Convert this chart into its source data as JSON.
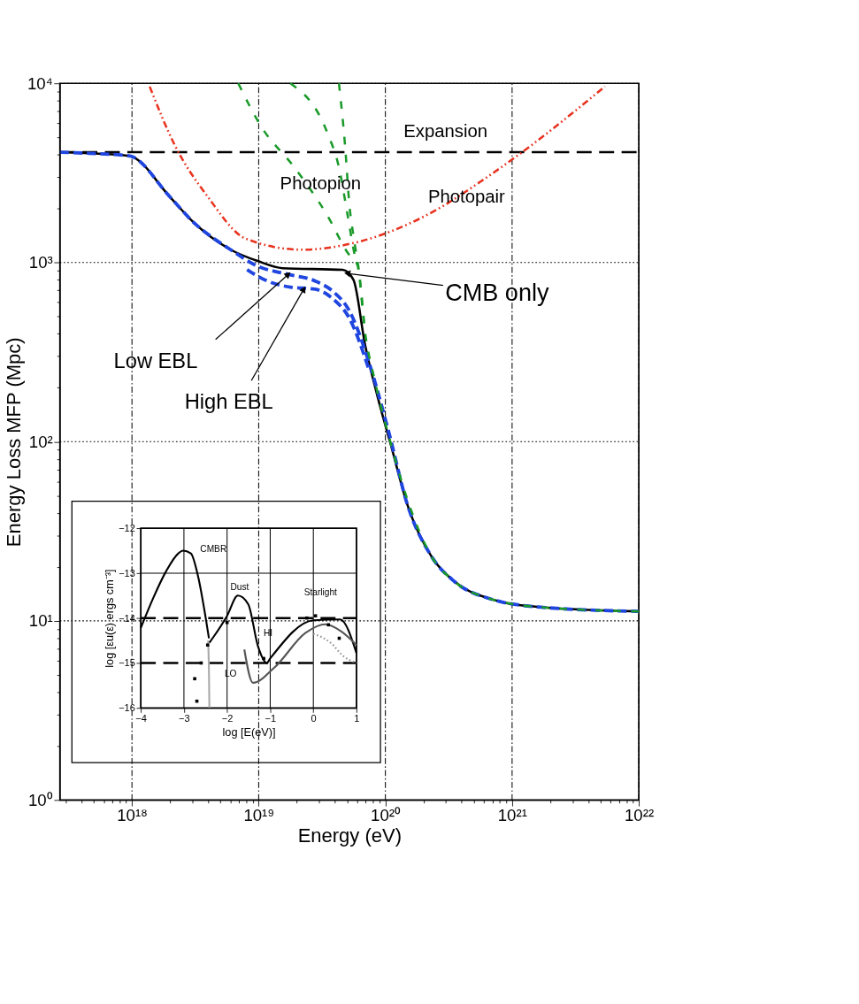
{
  "chart_data": [
    {
      "type": "line",
      "xlabel": "Energy (eV)",
      "ylabel": "Energy Loss MFP (Mpc)",
      "log": "xy",
      "xlim": [
        2.7e+17,
        1e+22
      ],
      "ylim": [
        1,
        10000
      ],
      "xticks": [
        {
          "value": 3e+17,
          "label": null
        },
        {
          "value": 4e+17,
          "label": null
        },
        {
          "value": 5e+17,
          "label": null
        },
        {
          "value": 6e+17,
          "label": null
        },
        {
          "value": 7e+17,
          "label": null
        },
        {
          "value": 8e+17,
          "label": null
        },
        {
          "value": 9e+17,
          "label": null
        },
        {
          "value": 1e+18,
          "label": "10¹⁸"
        },
        {
          "value": 2e+18,
          "label": null
        },
        {
          "value": 3e+18,
          "label": null
        },
        {
          "value": 4e+18,
          "label": null
        },
        {
          "value": 5e+18,
          "label": null
        },
        {
          "value": 6e+18,
          "label": null
        },
        {
          "value": 7e+18,
          "label": null
        },
        {
          "value": 8e+18,
          "label": null
        },
        {
          "value": 9e+18,
          "label": null
        },
        {
          "value": 1e+19,
          "label": "10¹⁹"
        },
        {
          "value": 2e+19,
          "label": null
        },
        {
          "value": 3e+19,
          "label": null
        },
        {
          "value": 4e+19,
          "label": null
        },
        {
          "value": 5e+19,
          "label": null
        },
        {
          "value": 6e+19,
          "label": null
        },
        {
          "value": 7e+19,
          "label": null
        },
        {
          "value": 8e+19,
          "label": null
        },
        {
          "value": 9e+19,
          "label": null
        },
        {
          "value": 1e+20,
          "label": "10²⁰"
        },
        {
          "value": 2e+20,
          "label": null
        },
        {
          "value": 3e+20,
          "label": null
        },
        {
          "value": 4e+20,
          "label": null
        },
        {
          "value": 5e+20,
          "label": null
        },
        {
          "value": 6e+20,
          "label": null
        },
        {
          "value": 7e+20,
          "label": null
        },
        {
          "value": 8e+20,
          "label": null
        },
        {
          "value": 9e+20,
          "label": null
        },
        {
          "value": 1e+21,
          "label": "10²¹"
        },
        {
          "value": 2e+21,
          "label": null
        },
        {
          "value": 3e+21,
          "label": null
        },
        {
          "value": 4e+21,
          "label": null
        },
        {
          "value": 5e+21,
          "label": null
        },
        {
          "value": 6e+21,
          "label": null
        },
        {
          "value": 7e+21,
          "label": null
        },
        {
          "value": 8e+21,
          "label": null
        },
        {
          "value": 9e+21,
          "label": null
        },
        {
          "value": 1e+22,
          "label": "10²²"
        }
      ],
      "yticks": [
        {
          "value": 1,
          "label": "10⁰"
        },
        {
          "value": 2,
          "label": null
        },
        {
          "value": 3,
          "label": null
        },
        {
          "value": 4,
          "label": null
        },
        {
          "value": 5,
          "label": null
        },
        {
          "value": 6,
          "label": null
        },
        {
          "value": 7,
          "label": null
        },
        {
          "value": 8,
          "label": null
        },
        {
          "value": 9,
          "label": null
        },
        {
          "value": 10,
          "label": "10¹"
        },
        {
          "value": 20,
          "label": null
        },
        {
          "value": 30,
          "label": null
        },
        {
          "value": 40,
          "label": null
        },
        {
          "value": 50,
          "label": null
        },
        {
          "value": 60,
          "label": null
        },
        {
          "value": 70,
          "label": null
        },
        {
          "value": 80,
          "label": null
        },
        {
          "value": 90,
          "label": null
        },
        {
          "value": 100,
          "label": "10²"
        },
        {
          "value": 200,
          "label": null
        },
        {
          "value": 300,
          "label": null
        },
        {
          "value": 400,
          "label": null
        },
        {
          "value": 500,
          "label": null
        },
        {
          "value": 600,
          "label": null
        },
        {
          "value": 700,
          "label": null
        },
        {
          "value": 800,
          "label": null
        },
        {
          "value": 900,
          "label": null
        },
        {
          "value": 1000,
          "label": "10³"
        },
        {
          "value": 2000,
          "label": null
        },
        {
          "value": 3000,
          "label": null
        },
        {
          "value": 4000,
          "label": null
        },
        {
          "value": 5000,
          "label": null
        },
        {
          "value": 6000,
          "label": null
        },
        {
          "value": 7000,
          "label": null
        },
        {
          "value": 8000,
          "label": null
        },
        {
          "value": 9000,
          "label": null
        },
        {
          "value": 10000,
          "label": "10⁴"
        }
      ],
      "grid": true,
      "ref_lines": [
        {
          "axis": "y",
          "value": 4130,
          "label": "Expansion",
          "line_style": "dashed",
          "color": "#000000"
        }
      ],
      "series": [
        {
          "color": "#000000",
          "line_style": "solid",
          "x": [
            2.7e+17,
            4.6e+17,
            9.5e+17,
            2e+18,
            3e+18,
            6e+18,
            9.8e+18,
            1.55e+19,
            4.6e+19,
            5.6e+19,
            6.9e+19,
            8.7e+19,
            1.1e+20,
            1.5e+20,
            2.3e+20,
            3.5e+20,
            6.9e+20,
            1.74e+21,
            1e+22
          ],
          "values": [
            4130,
            4070,
            3940,
            2320,
            1700,
            1180,
            1020,
            930,
            910,
            800,
            350,
            177,
            97,
            44,
            23,
            16.6,
            13.2,
            11.9,
            11.3
          ]
        },
        {
          "color": "#2046e0",
          "line_style": "dashed",
          "x": [
            2.7e+17,
            4.6e+17,
            9.5e+17,
            2e+18,
            3e+18,
            6e+18,
            9.8e+18,
            1.71e+19,
            2.79e+19,
            3.86e+19,
            5.2e+19,
            7.4e+19,
            1.05e+20,
            1.5e+20,
            2.3e+20,
            3.5e+20,
            6.9e+20,
            1.74e+21,
            1e+22
          ],
          "values": [
            4130,
            4070,
            3940,
            2320,
            1700,
            1180,
            955,
            859,
            789,
            689,
            537,
            279,
            117,
            44,
            23,
            16.6,
            13.2,
            11.9,
            11.3
          ]
        },
        {
          "color": "#2046e0",
          "line_style": "dashed",
          "x": [
            8.1e+18,
            1.17e+19,
            1.78e+19,
            2.79e+19,
            3.86e+19,
            5.2e+19,
            7.4e+19
          ],
          "values": [
            912,
            789,
            729,
            710,
            627,
            488,
            254
          ]
        },
        {
          "color": "#1a9a2a",
          "line_style": "dashed",
          "x": [
            6.9e+18,
            1.04e+19,
            1.91e+19,
            3.5e+19,
            5.1e+19,
            6e+19,
            6.9e+19,
            8.3e+19,
            1.04e+20,
            1.5e+20,
            2.3e+20,
            3.5e+20,
            6.9e+20,
            1.74e+21,
            1e+22
          ],
          "values": [
            10000,
            5780,
            3400,
            1820,
            1120,
            975,
            410,
            215,
            114,
            47,
            23,
            16.6,
            13.2,
            11.9,
            11.3
          ]
        },
        {
          "color": "#1a9a2a",
          "line_style": "dashed",
          "x": [
            1.78e+19,
            3.5e+19,
            4.3e+19,
            5.1e+19,
            5.7e+19,
            6e+19
          ],
          "values": [
            10000,
            5250,
            3400,
            1740,
            1120,
            975
          ]
        },
        {
          "color": "#1a9a2a",
          "line_style": "dashed",
          "x": [
            4.3e+19,
            4.8e+19,
            5.2e+19,
            5.7e+19,
            6.2e+19,
            6.9e+19
          ],
          "values": [
            10000,
            4540,
            2100,
            1300,
            885,
            410
          ]
        },
        {
          "color": "#e8321e",
          "line_style": "dashdot",
          "x": [
            1.38e+18,
            2.17e+18,
            3.98e+18,
            7.9e+18,
            2.19e+19,
            6e+19,
            2.34e+20,
            6.1e+20,
            1.2e+21,
            5.4e+21
          ],
          "values": [
            9600,
            4540,
            2320,
            1360,
            1180,
            1300,
            1910,
            2940,
            4130,
            9600
          ]
        }
      ],
      "annotations": [
        "Photopion",
        "Photopair",
        {
          "text": "CMB only",
          "x": 5e+19,
          "y": 870
        },
        {
          "text": "Low EBL",
          "x": 1.71e+19,
          "y": 859
        },
        {
          "text": "High EBL",
          "x": 2.27e+19,
          "y": 710
        }
      ]
    },
    {
      "type": "line",
      "xlabel": "log [E(eV)]",
      "ylabel": "log [εu(ε) ergs cm⁻³]",
      "xlim": [
        -4,
        1
      ],
      "ylim": [
        -16,
        -12
      ],
      "xticks": [
        -4,
        -3,
        -2,
        -1,
        0,
        1
      ],
      "yticks": [
        -16,
        -15,
        -14,
        -13,
        -12
      ],
      "grid": "x",
      "ref_lines": [
        {
          "axis": "y",
          "value": -13,
          "line_style": "solid",
          "color": "#000000"
        },
        {
          "axis": "y",
          "value": -14,
          "line_style": "dashed",
          "color": "#000000"
        },
        {
          "axis": "y",
          "value": -15,
          "line_style": "dashed",
          "color": "#000000"
        }
      ],
      "series": [
        {
          "color": "#000000",
          "line_style": "solid",
          "x": [
            -4,
            -3.71,
            -3.42,
            -3.13,
            -3.02,
            -2.84,
            -2.67,
            -2.5,
            -2.42
          ],
          "values": [
            -14.22,
            -13.55,
            -12.97,
            -12.56,
            -12.5,
            -12.56,
            -13.08,
            -13.97,
            -14.45
          ]
        },
        {
          "color": "#aaaaaa",
          "line_style": "solid",
          "x": [
            -2.44,
            -2.42,
            -2.41
          ],
          "values": [
            -14.5,
            -15.2,
            -16
          ]
        },
        {
          "color": "#000000",
          "line_style": "solid",
          "x": [
            -2.41,
            -2.3,
            -2.0,
            -1.75,
            -1.51,
            -1.28,
            -1.08,
            -1.0,
            0,
            0.62,
            1
          ],
          "values": [
            -14.55,
            -14.4,
            -13.95,
            -13.5,
            -13.69,
            -14.64,
            -15.0,
            -14.9,
            -14.05,
            -14.03,
            -14.78
          ]
        },
        {
          "color": "#555555",
          "line_style": "solid",
          "x": [
            -1.6,
            -1.4,
            -0.9,
            -0.18,
            0.28,
            0.62,
            1
          ],
          "values": [
            -14.7,
            -15.44,
            -15.1,
            -14.33,
            -14.14,
            -14.28,
            -14.6
          ]
        },
        {
          "color": "#999999",
          "line_style": "dotted",
          "x": [
            0,
            0.4,
            0.7,
            1
          ],
          "values": [
            -14.35,
            -14.55,
            -14.85,
            -15.0
          ]
        },
        {
          "type": "scatter",
          "marker": "square",
          "color": "#000000",
          "x": [
            -2.45,
            -2.0,
            -2.6,
            -2.75,
            -2.7,
            -1.15,
            -0.15,
            0.05,
            0.35,
            0.6
          ],
          "values": [
            -14.6,
            -14.1,
            -15.0,
            -15.35,
            -15.85,
            -14.9,
            -14.0,
            -13.95,
            -14.15,
            -14.45
          ]
        }
      ],
      "annotations": [
        "CMBR",
        "Dust",
        "Starlight",
        "HI",
        "LO"
      ]
    }
  ]
}
